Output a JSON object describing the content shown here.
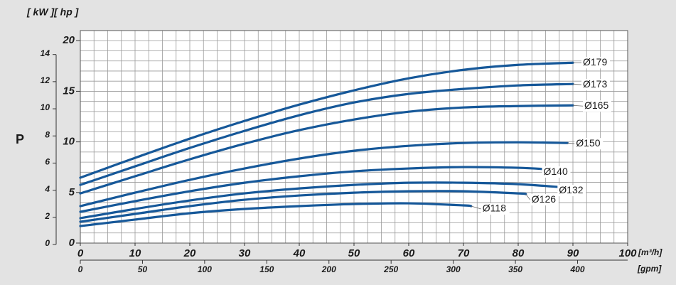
{
  "chart_data": {
    "type": "line",
    "units_label": "[ kW ][ hp ]",
    "y_label": "P",
    "x_unit": "[m³/h]",
    "x2_unit": "[gpm]",
    "xlim": [
      0,
      100
    ],
    "xticks": [
      0,
      10,
      20,
      30,
      40,
      50,
      60,
      70,
      80,
      90,
      100
    ],
    "x2lim": [
      0,
      440.3
    ],
    "x2ticks": [
      0,
      50,
      100,
      150,
      200,
      250,
      300,
      350,
      400
    ],
    "ylim": [
      0,
      21
    ],
    "yticks": [
      0,
      5,
      10,
      15,
      20
    ],
    "y2lim": [
      0,
      15.66
    ],
    "y2ticks": [
      0,
      2,
      4,
      6,
      8,
      10,
      12,
      14
    ],
    "grid": true,
    "minor_grid": {
      "x": 2.5,
      "y": 1
    },
    "color": "#165899",
    "series": [
      {
        "name": "Ø179",
        "x": [
          0,
          10,
          20,
          30,
          40,
          50,
          60,
          70,
          80,
          90
        ],
        "values": [
          6.46,
          8.42,
          10.32,
          12.07,
          13.68,
          15.09,
          16.28,
          17.12,
          17.61,
          17.82
        ]
      },
      {
        "name": "Ø173",
        "x": [
          0,
          10,
          20,
          30,
          40,
          50,
          60,
          70,
          80,
          90
        ],
        "values": [
          5.75,
          7.58,
          9.4,
          11.09,
          12.63,
          13.89,
          14.74,
          15.23,
          15.58,
          15.72
        ]
      },
      {
        "name": "Ø165",
        "x": [
          0,
          10,
          20,
          30,
          40,
          50,
          60,
          70,
          80,
          90
        ],
        "values": [
          4.91,
          6.6,
          8.28,
          9.82,
          11.16,
          12.21,
          12.98,
          13.4,
          13.54,
          13.61
        ]
      },
      {
        "name": "Ø150",
        "x": [
          0,
          10,
          20,
          30,
          40,
          50,
          60,
          70,
          80,
          89
        ],
        "values": [
          3.65,
          4.98,
          6.25,
          7.37,
          8.35,
          9.12,
          9.61,
          9.89,
          9.96,
          9.89
        ]
      },
      {
        "name": "Ø140",
        "x": [
          0,
          10,
          20,
          30,
          40,
          50,
          60,
          70,
          80,
          85
        ],
        "values": [
          3.09,
          4.14,
          5.12,
          5.96,
          6.6,
          7.09,
          7.37,
          7.51,
          7.44,
          7.3
        ]
      },
      {
        "name": "Ø132",
        "x": [
          0,
          10,
          20,
          30,
          40,
          50,
          60,
          70,
          80,
          89
        ],
        "values": [
          2.46,
          3.37,
          4.21,
          4.91,
          5.4,
          5.75,
          5.96,
          5.96,
          5.82,
          5.47
        ]
      },
      {
        "name": "Ø126",
        "x": [
          0,
          10,
          20,
          30,
          40,
          50,
          60,
          70,
          80,
          81.4
        ],
        "values": [
          2.11,
          2.88,
          3.65,
          4.28,
          4.7,
          4.98,
          5.12,
          5.12,
          4.91,
          4.84
        ]
      },
      {
        "name": "Ø118",
        "x": [
          0,
          10,
          20,
          30,
          40,
          50,
          60,
          70,
          71.4
        ],
        "values": [
          1.68,
          2.32,
          2.95,
          3.37,
          3.65,
          3.86,
          3.93,
          3.72,
          3.65
        ]
      }
    ]
  }
}
